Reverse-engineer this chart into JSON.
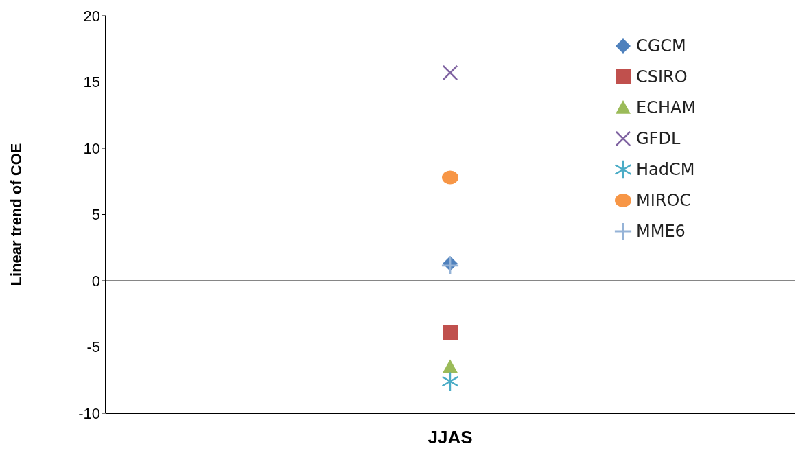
{
  "chart_data": {
    "type": "scatter",
    "ylabel": "Linear trend of COE",
    "categories": [
      "JJAS"
    ],
    "ylim": [
      -10,
      20
    ],
    "yticks": [
      -10,
      -5,
      0,
      5,
      10,
      15,
      20
    ],
    "grid": false,
    "legend": "top right",
    "ref_lines": [
      {
        "axis": "y",
        "value": 0,
        "color": "#868686"
      }
    ],
    "series": [
      {
        "name": "CGCM",
        "color": "#4f81bd",
        "values": [
          1.3
        ],
        "marker": "diamond"
      },
      {
        "name": "CSIRO",
        "color": "#c0504d",
        "values": [
          -3.9
        ],
        "marker": "square"
      },
      {
        "name": "ECHAM",
        "color": "#9bbb59",
        "values": [
          -6.5
        ],
        "marker": "triangle"
      },
      {
        "name": "GFDL",
        "color": "#8064a2",
        "values": [
          15.7
        ],
        "marker": "cross"
      },
      {
        "name": "HadCM",
        "color": "#4bacc6",
        "values": [
          -7.6
        ],
        "marker": "star"
      },
      {
        "name": "MIROC",
        "color": "#f79646",
        "values": [
          7.8
        ],
        "marker": "circle"
      },
      {
        "name": "MME6",
        "color": "#95b3d7",
        "values": [
          1.15
        ],
        "marker": "plus"
      }
    ]
  }
}
